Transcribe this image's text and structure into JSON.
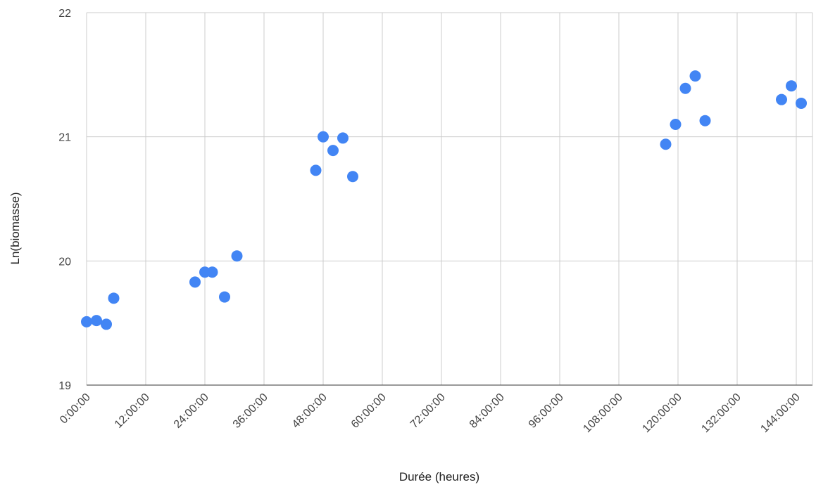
{
  "chart_data": {
    "type": "scatter",
    "title": "",
    "xlabel": "Durée (heures)",
    "ylabel": "Ln(biomasse)",
    "xlim": [
      0,
      146
    ],
    "ylim": [
      19,
      22
    ],
    "x_unit": "hours",
    "x_tick_labels": [
      "0:00:00",
      "12:00:00",
      "24:00:00",
      "36:00:00",
      "48:00:00",
      "60:00:00",
      "72:00:00",
      "84:00:00",
      "96:00:00",
      "108:00:00",
      "120:00:00",
      "132:00:00",
      "144:00:00"
    ],
    "y_tick_labels": [
      "19",
      "20",
      "21",
      "22"
    ],
    "grid": true,
    "point_color": "#4285F4",
    "series": [
      {
        "x": [
          0.0,
          2.0,
          4.0,
          5.5,
          22.0,
          24.0,
          25.5,
          28.0,
          30.5,
          46.5,
          48.0,
          50.0,
          52.0,
          54.0,
          117.5,
          119.5,
          121.5,
          123.5,
          125.5,
          141.0,
          143.0,
          145.0
        ],
        "y": [
          19.51,
          19.52,
          19.49,
          19.7,
          19.83,
          19.91,
          19.91,
          19.71,
          20.04,
          20.73,
          21.0,
          20.89,
          20.99,
          20.68,
          20.94,
          21.1,
          21.39,
          21.49,
          21.13,
          21.3,
          21.41,
          21.27
        ]
      }
    ]
  }
}
